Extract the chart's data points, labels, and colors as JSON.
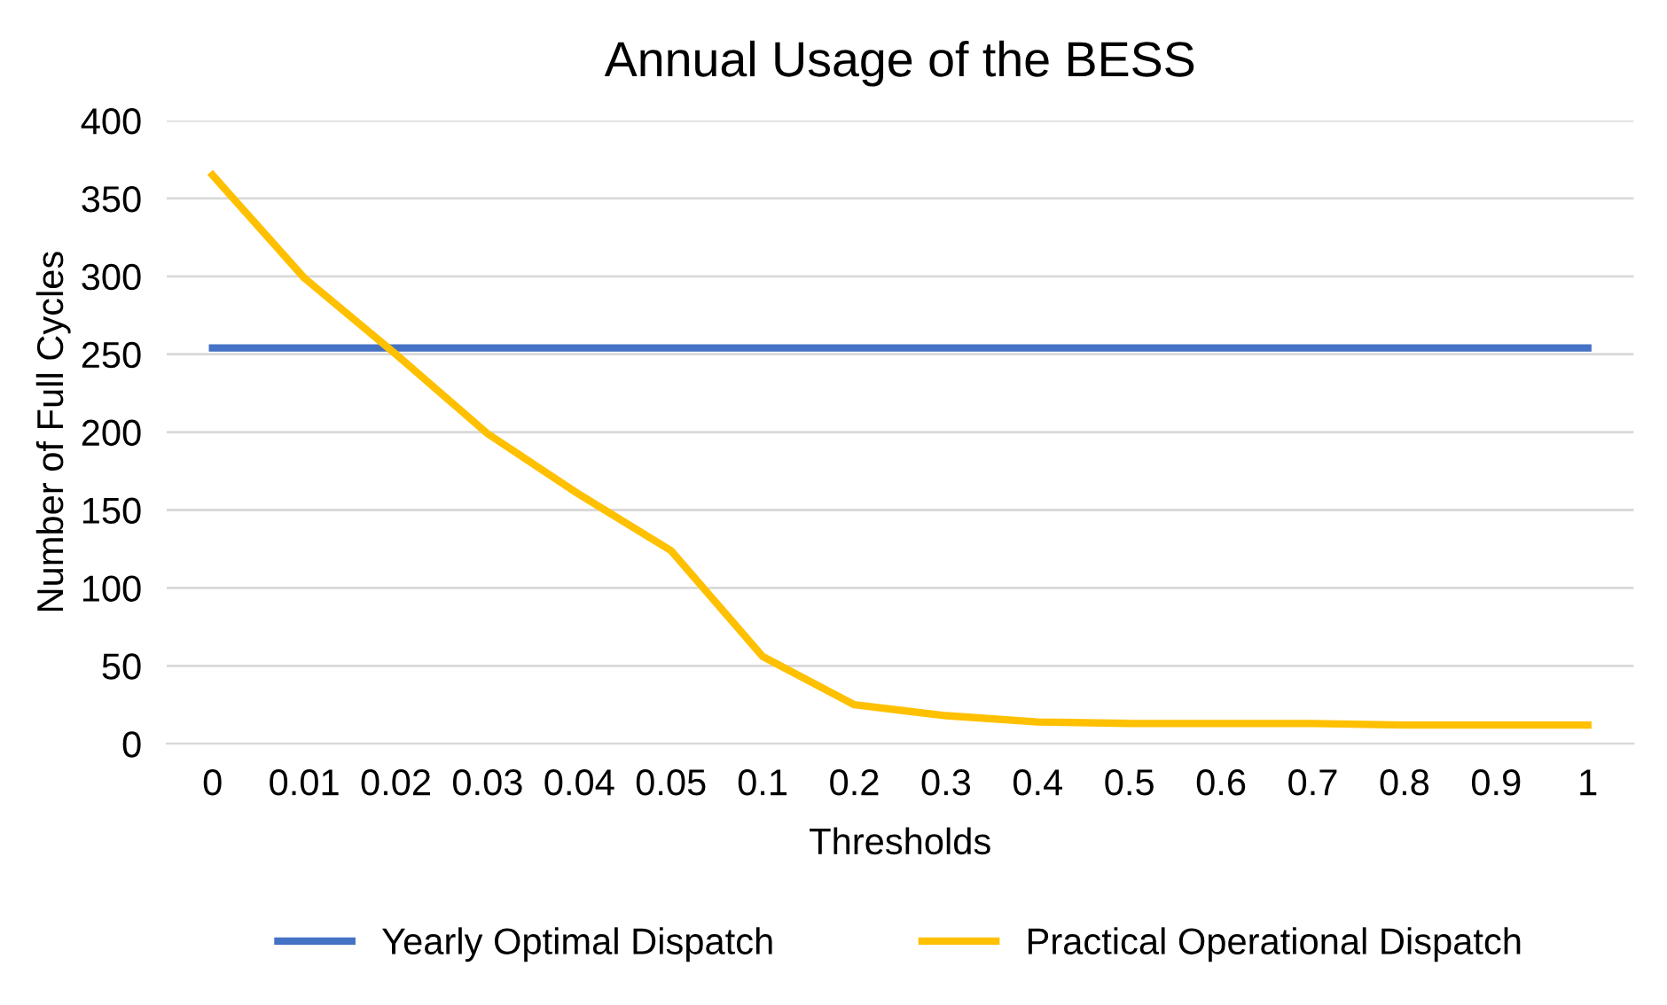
{
  "chart_data": {
    "type": "line",
    "title": "Annual Usage of the BESS",
    "xlabel": "Thresholds",
    "ylabel": "Number of Full Cycles",
    "categories": [
      "0",
      "0.01",
      "0.02",
      "0.03",
      "0.04",
      "0.05",
      "0.1",
      "0.2",
      "0.3",
      "0.4",
      "0.5",
      "0.6",
      "0.7",
      "0.8",
      "0.9",
      "1"
    ],
    "series": [
      {
        "name": "Yearly Optimal Dispatch",
        "color": "#4472c4",
        "values": [
          254,
          254,
          254,
          254,
          254,
          254,
          254,
          254,
          254,
          254,
          254,
          254,
          254,
          254,
          254,
          254
        ]
      },
      {
        "name": "Practical Operational Dispatch",
        "color": "#ffc000",
        "values": [
          365,
          299,
          250,
          199,
          160,
          124,
          56,
          25,
          18,
          14,
          13,
          13,
          13,
          12,
          12,
          12
        ]
      }
    ],
    "ylim": [
      0,
      400
    ],
    "yticks": [
      0,
      50,
      100,
      150,
      200,
      250,
      300,
      350,
      400
    ],
    "grid": "y",
    "legend": "bottom",
    "marker": "none",
    "line_style": "solid"
  }
}
